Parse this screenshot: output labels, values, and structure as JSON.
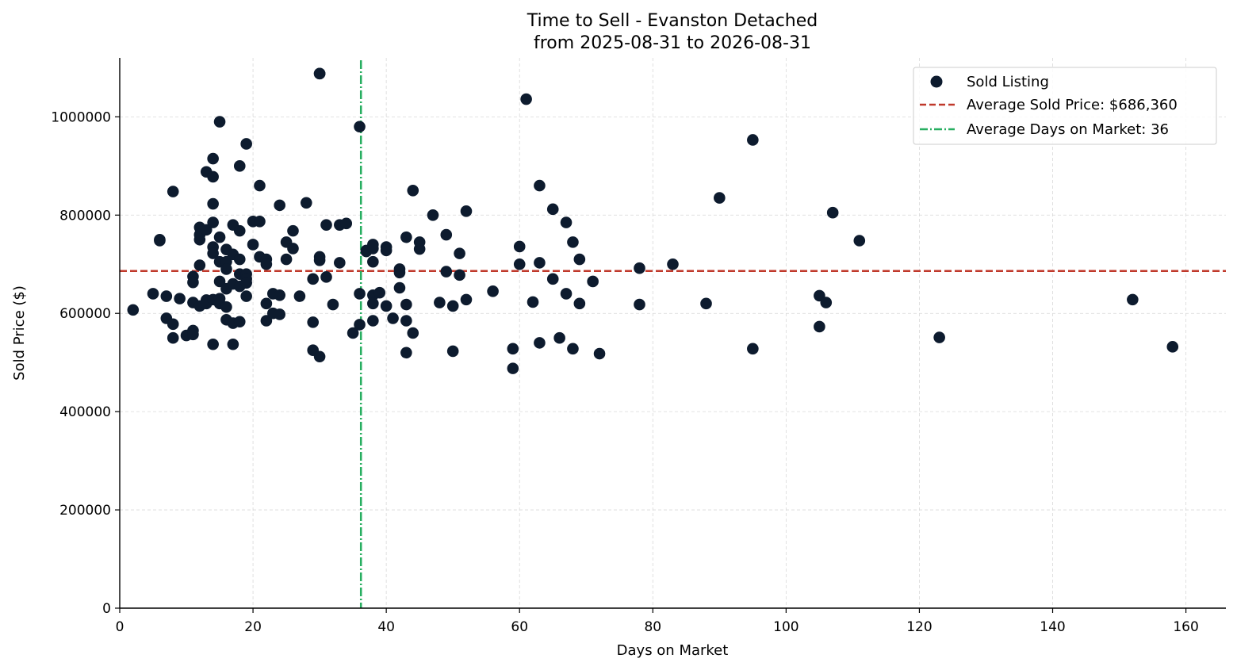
{
  "chart_data": {
    "type": "scatter",
    "title_line1": "Time to Sell - Evanston Detached",
    "title_line2": "from 2025-08-31 to 2026-08-31",
    "xlabel": "Days on Market",
    "ylabel": "Sold Price ($)",
    "xlim": [
      0,
      166
    ],
    "ylim": [
      0,
      1120000
    ],
    "xticks": [
      0,
      20,
      40,
      60,
      80,
      100,
      120,
      140,
      160
    ],
    "yticks": [
      0,
      200000,
      400000,
      600000,
      800000,
      1000000
    ],
    "xtick_labels": [
      "0",
      "20",
      "40",
      "60",
      "80",
      "100",
      "120",
      "140",
      "160"
    ],
    "ytick_labels": [
      "0",
      "200000",
      "400000",
      "600000",
      "800000",
      "1000000"
    ],
    "grid": true,
    "legend_position": "top-right",
    "colors": {
      "points": "#0d1b2e",
      "avg_price": "#c0392b",
      "avg_days": "#27ae60"
    },
    "reference_lines": {
      "avg_price": {
        "value": 686360,
        "label": "Average Sold Price: $686,360"
      },
      "avg_days": {
        "value": 36.2,
        "label": "Average Days on Market: 36"
      }
    },
    "series": [
      {
        "name": "Sold Listing",
        "x": [
          2,
          5,
          6,
          6,
          7,
          7,
          8,
          8,
          8,
          9,
          10,
          11,
          11,
          11,
          11,
          11,
          12,
          12,
          12,
          12,
          12,
          13,
          13,
          13,
          13,
          14,
          14,
          14,
          14,
          14,
          14,
          14,
          14,
          15,
          15,
          15,
          15,
          15,
          15,
          16,
          16,
          16,
          16,
          16,
          16,
          17,
          17,
          17,
          17,
          17,
          18,
          18,
          18,
          18,
          18,
          18,
          19,
          19,
          19,
          19,
          19,
          20,
          20,
          21,
          21,
          21,
          22,
          22,
          22,
          22,
          23,
          23,
          24,
          24,
          24,
          25,
          25,
          26,
          26,
          27,
          28,
          29,
          29,
          29,
          30,
          30,
          30,
          30,
          31,
          31,
          32,
          33,
          33,
          34,
          35,
          36,
          36,
          36,
          37,
          37,
          38,
          38,
          38,
          38,
          38,
          38,
          39,
          40,
          40,
          40,
          41,
          42,
          42,
          42,
          43,
          43,
          43,
          43,
          44,
          44,
          45,
          45,
          47,
          48,
          49,
          49,
          50,
          50,
          51,
          51,
          52,
          52,
          56,
          59,
          59,
          60,
          60,
          62,
          63,
          63,
          63,
          65,
          65,
          66,
          67,
          67,
          68,
          68,
          69,
          69,
          71,
          72,
          78,
          78,
          83,
          88,
          90,
          95,
          95,
          105,
          105,
          106,
          107,
          111,
          123,
          152,
          158
        ],
        "y": [
          607000,
          640000,
          748000,
          750000,
          635000,
          590000,
          848000,
          578000,
          550000,
          630000,
          555000,
          622000,
          565000,
          675000,
          663000,
          557000,
          775000,
          750000,
          698000,
          760000,
          615000,
          888000,
          770000,
          627000,
          620000,
          915000,
          878000,
          823000,
          785000,
          735000,
          722000,
          628000,
          537000,
          990000,
          755000,
          705000,
          665000,
          630000,
          620000,
          730000,
          705000,
          690000,
          650000,
          613000,
          587000,
          780000,
          720000,
          660000,
          580000,
          537000,
          900000,
          768000,
          710000,
          680000,
          655000,
          583000,
          945000,
          680000,
          670000,
          662000,
          635000,
          787000,
          740000,
          860000,
          787000,
          715000,
          710000,
          700000,
          620000,
          585000,
          640000,
          600000,
          820000,
          637000,
          598000,
          745000,
          710000,
          768000,
          732000,
          635000,
          825000,
          670000,
          582000,
          525000,
          1088000,
          715000,
          708000,
          512000,
          780000,
          674000,
          618000,
          780000,
          703000,
          783000,
          560000,
          980000,
          640000,
          577000,
          728000,
          726000,
          740000,
          732000,
          705000,
          637000,
          620000,
          585000,
          642000,
          735000,
          728000,
          615000,
          590000,
          690000,
          683000,
          652000,
          755000,
          618000,
          585000,
          520000,
          850000,
          560000,
          745000,
          731000,
          800000,
          622000,
          760000,
          685000,
          615000,
          523000,
          722000,
          678000,
          808000,
          628000,
          645000,
          528000,
          488000,
          736000,
          700000,
          623000,
          860000,
          703000,
          540000,
          812000,
          670000,
          550000,
          785000,
          640000,
          745000,
          528000,
          710000,
          620000,
          665000,
          518000,
          692000,
          618000,
          700000,
          620000,
          835000,
          953000,
          528000,
          636000,
          573000,
          622000,
          805000,
          748000,
          551000,
          628000,
          532000
        ]
      },
      {
        "name": "",
        "x": [
          30,
          61
        ],
        "y": [
          1088000,
          1036000
        ]
      }
    ]
  }
}
